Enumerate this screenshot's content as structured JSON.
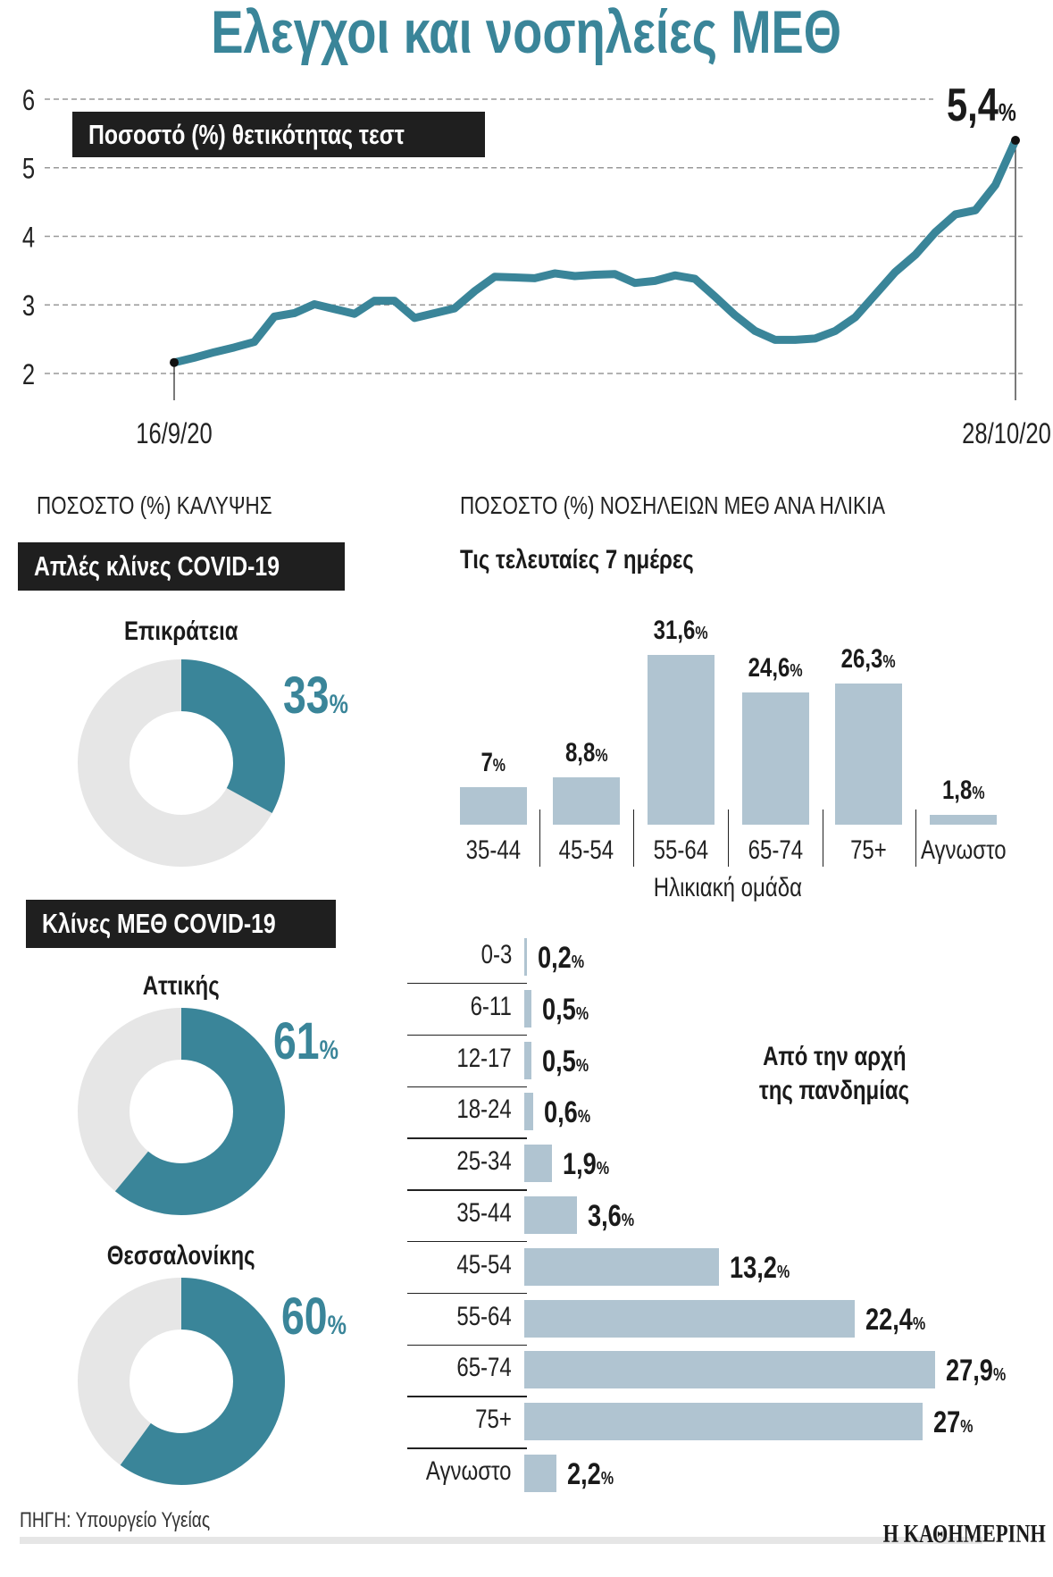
{
  "title": "Ελεγχοι και νοσηλείες ΜΕΘ",
  "colors": {
    "accent": "#3a8599",
    "donut_rest": "#e6e6e6",
    "bar": "#b0c4d1",
    "box": "#1f1f1f"
  },
  "chart_data": [
    {
      "type": "line",
      "title": "Ποσοστό (%) θετικότητας τεστ",
      "x_start_label": "16/9/20",
      "x_end_label": "28/10/20",
      "yticks": [
        2,
        3,
        4,
        5,
        6
      ],
      "ylim": [
        2,
        6
      ],
      "grid": true,
      "end_label": "5,4",
      "end_unit": "%",
      "x": [
        "16/9",
        "17/9",
        "18/9",
        "19/9",
        "20/9",
        "21/9",
        "22/9",
        "23/9",
        "24/9",
        "25/9",
        "26/9",
        "27/9",
        "28/9",
        "29/9",
        "30/9",
        "1/10",
        "2/10",
        "3/10",
        "4/10",
        "5/10",
        "6/10",
        "7/10",
        "8/10",
        "9/10",
        "10/10",
        "11/10",
        "12/10",
        "13/10",
        "14/10",
        "15/10",
        "16/10",
        "17/10",
        "18/10",
        "19/10",
        "20/10",
        "21/10",
        "22/10",
        "23/10",
        "24/10",
        "25/10",
        "26/10",
        "27/10",
        "28/10"
      ],
      "values": [
        2.16,
        2.23,
        2.31,
        2.38,
        2.46,
        2.83,
        2.88,
        3.01,
        2.94,
        2.87,
        3.06,
        3.06,
        2.81,
        2.88,
        2.95,
        3.2,
        3.41,
        3.4,
        3.39,
        3.46,
        3.42,
        3.44,
        3.45,
        3.32,
        3.35,
        3.43,
        3.38,
        3.12,
        2.85,
        2.62,
        2.49,
        2.49,
        2.51,
        2.62,
        2.82,
        3.15,
        3.48,
        3.73,
        4.06,
        4.32,
        4.38,
        4.75,
        5.4
      ]
    },
    {
      "type": "pie",
      "section_title": "ΠΟΣΟΣΤΟ (%) ΚΑΛΥΨΗΣ",
      "groups": [
        {
          "box": "Απλές κλίνες COVID-19",
          "items": [
            {
              "label": "Επικράτεια",
              "value": 33,
              "text": "33"
            }
          ]
        },
        {
          "box": "Κλίνες ΜΕΘ COVID-19",
          "items": [
            {
              "label": "Αττικής",
              "value": 61,
              "text": "61"
            },
            {
              "label": "Θεσσαλονίκης",
              "value": 60,
              "text": "60"
            }
          ]
        }
      ],
      "unit": "%"
    },
    {
      "type": "bar",
      "section_title": "ΠΟΣΟΣΤΟ (%) ΝΟΣΗΛΕΙΩΝ ΜΕΘ ΑΝΑ ΗΛΙΚΙΑ",
      "subtitle": "Τις τελευταίες 7 ημέρες",
      "xlabel": "Ηλικιακή ομάδα",
      "categories": [
        "35-44",
        "45-54",
        "55-64",
        "65-74",
        "75+",
        "Αγνωστο"
      ],
      "values": [
        7,
        8.8,
        31.6,
        24.6,
        26.3,
        1.8
      ],
      "labels": [
        "7",
        "8,8",
        "31,6",
        "24,6",
        "26,3",
        "1,8"
      ],
      "unit": "%"
    },
    {
      "type": "bar",
      "orientation": "horizontal",
      "annotation": [
        "Από την αρχή",
        "της πανδημίας"
      ],
      "categories": [
        "0-3",
        "6-11",
        "12-17",
        "18-24",
        "25-34",
        "35-44",
        "45-54",
        "55-64",
        "65-74",
        "75+",
        "Αγνωστο"
      ],
      "values": [
        0.2,
        0.5,
        0.5,
        0.6,
        1.9,
        3.6,
        13.2,
        22.4,
        27.9,
        27,
        2.2
      ],
      "labels": [
        "0,2",
        "0,5",
        "0,5",
        "0,6",
        "1,9",
        "3,6",
        "13,2",
        "22,4",
        "27,9",
        "27",
        "2,2"
      ],
      "unit": "%"
    }
  ],
  "footer": {
    "source": "ΠΗΓΗ: Υπουργείο Υγείας",
    "logo": "Η ΚΑΘΗΜΕΡΙΝΗ"
  }
}
